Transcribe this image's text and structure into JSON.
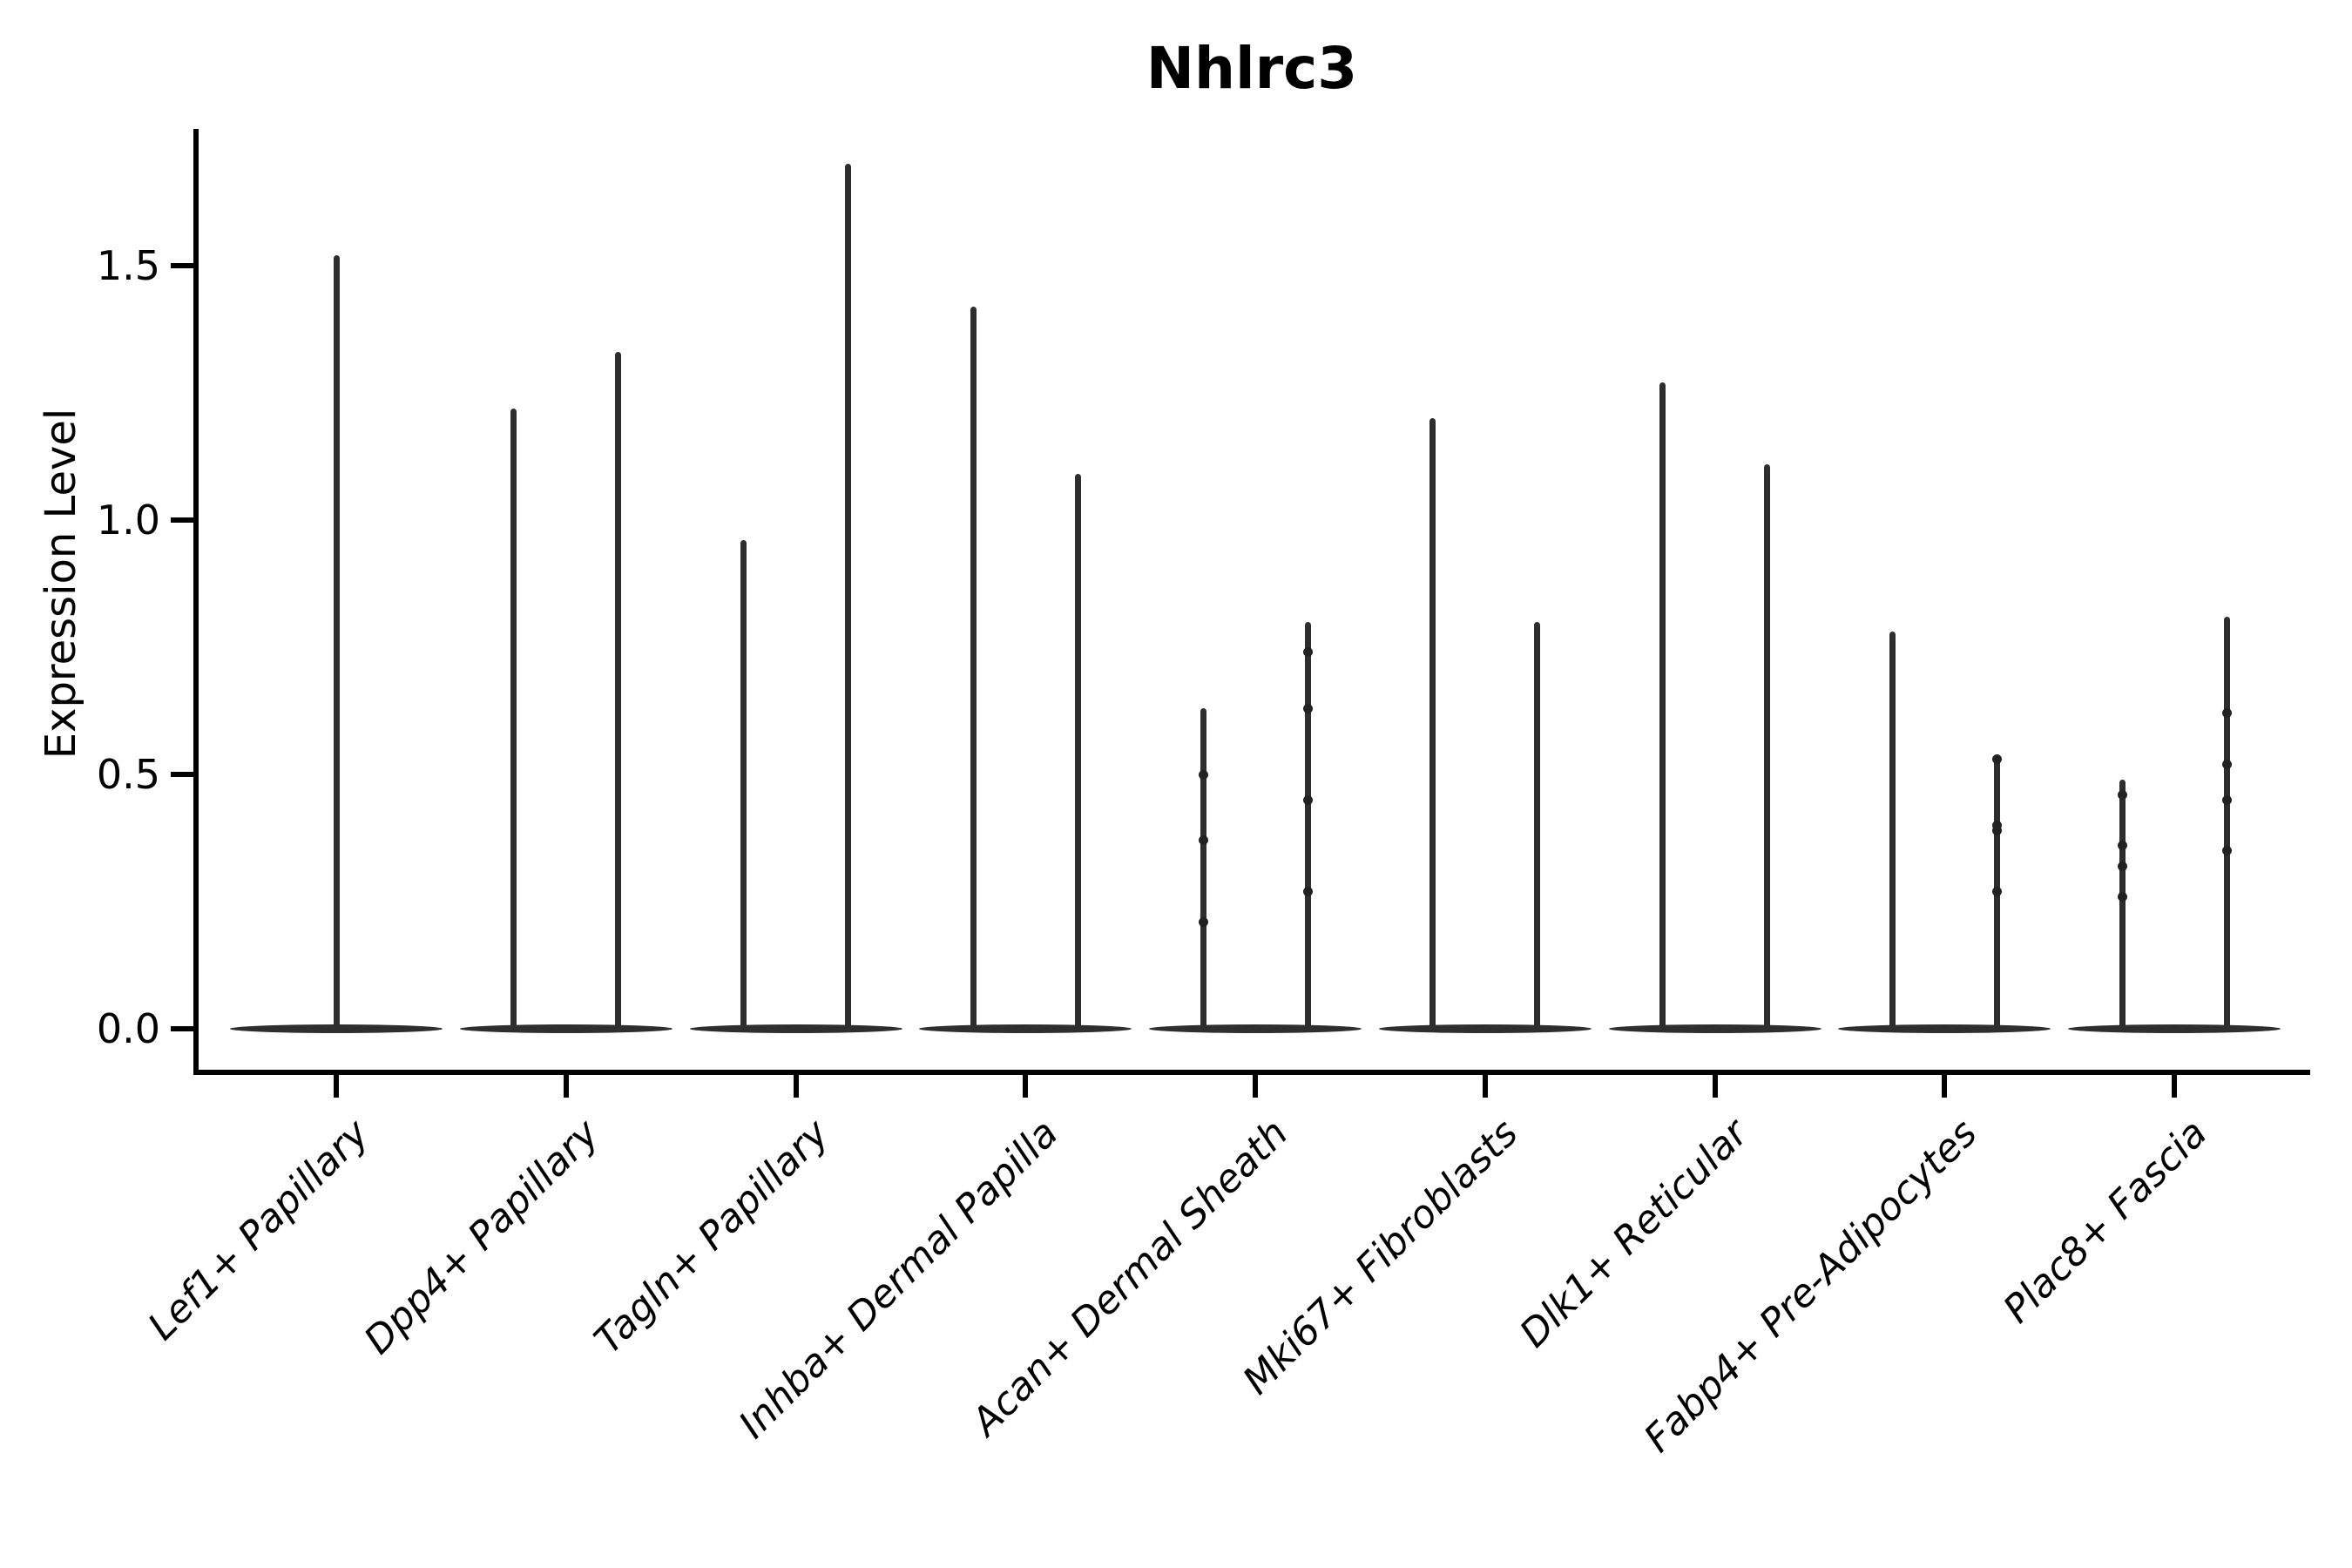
{
  "title": "Nhlrc3",
  "chart_data": {
    "type": "violin",
    "title": "Nhlrc3",
    "ylabel": "Expression Level",
    "xlabel": "",
    "grid": false,
    "legend": "none",
    "violin_color": "#2e2e2e",
    "axis_color": "#000000",
    "ytick_labels": [
      "0.0",
      "0.5",
      "1.0",
      "1.5"
    ],
    "ytick_values": [
      0.0,
      0.5,
      1.0,
      1.5
    ],
    "ylim": [
      -0.08,
      1.77
    ],
    "categories": [
      "Lef1+ Papillary",
      "Dpp4+ Papillary",
      "Tagln+ Papillary",
      "Inhba+ Dermal Papilla",
      "Acan+ Dermal Sheath",
      "Mki67+ Fibroblasts",
      "Dlk1+ Reticular",
      "Fabp4+ Pre-Adipocytes",
      "Plac8+ Fascia"
    ],
    "violins": [
      {
        "label": "Lef1+ Papillary",
        "spikes": [
          {
            "offset": "center",
            "max": 1.52,
            "points": []
          }
        ]
      },
      {
        "label": "Dpp4+ Papillary",
        "spikes": [
          {
            "offset": "left",
            "max": 1.22,
            "points": []
          },
          {
            "offset": "right",
            "max": 1.33,
            "points": []
          }
        ]
      },
      {
        "label": "Tagln+ Papillary",
        "spikes": [
          {
            "offset": "left",
            "max": 0.96,
            "points": []
          },
          {
            "offset": "right",
            "max": 1.7,
            "points": []
          }
        ]
      },
      {
        "label": "Inhba+ Dermal Papilla",
        "spikes": [
          {
            "offset": "left",
            "max": 1.42,
            "points": []
          },
          {
            "offset": "right",
            "max": 1.09,
            "points": []
          }
        ]
      },
      {
        "label": "Acan+ Dermal Sheath",
        "spikes": [
          {
            "offset": "left",
            "max": 0.63,
            "points": [
              0.5,
              0.37,
              0.21
            ]
          },
          {
            "offset": "right",
            "max": 0.8,
            "points": [
              0.74,
              0.63,
              0.45,
              0.27
            ]
          }
        ]
      },
      {
        "label": "Mki67+ Fibroblasts",
        "spikes": [
          {
            "offset": "left",
            "max": 1.2,
            "points": []
          },
          {
            "offset": "right",
            "max": 0.8,
            "points": []
          }
        ]
      },
      {
        "label": "Dlk1+ Reticular",
        "spikes": [
          {
            "offset": "left",
            "max": 1.27,
            "points": []
          },
          {
            "offset": "right",
            "max": 1.11,
            "points": []
          }
        ]
      },
      {
        "label": "Fabp4+ Pre-Adipocytes",
        "spikes": [
          {
            "offset": "left",
            "max": 0.78,
            "points": []
          },
          {
            "offset": "right",
            "max": 0.54,
            "points": [
              0.53,
              0.4,
              0.39,
              0.27
            ]
          }
        ]
      },
      {
        "label": "Plac8+ Fascia",
        "spikes": [
          {
            "offset": "left",
            "max": 0.49,
            "points": [
              0.46,
              0.36,
              0.32,
              0.26
            ]
          },
          {
            "offset": "right",
            "max": 0.81,
            "points": [
              0.62,
              0.52,
              0.45,
              0.35
            ]
          }
        ]
      }
    ]
  }
}
